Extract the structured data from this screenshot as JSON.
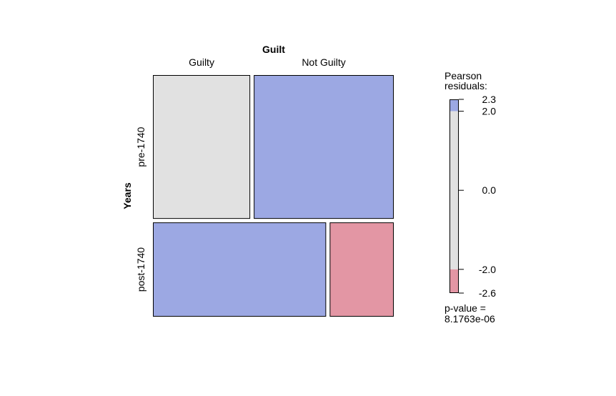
{
  "chart_data": {
    "type": "mosaic",
    "column_variable": "Guilt",
    "row_variable": "Years",
    "columns": [
      "Guilty",
      "Not Guilty"
    ],
    "rows": [
      "pre-1740",
      "post-1740"
    ],
    "row_proportions": [
      0.604,
      0.396
    ],
    "cells": [
      {
        "row": "pre-1740",
        "column": "Guilty",
        "column_proportion": 0.41,
        "residual_band": "neutral"
      },
      {
        "row": "pre-1740",
        "column": "Not Guilty",
        "column_proportion": 0.59,
        "residual_band": "positive"
      },
      {
        "row": "post-1740",
        "column": "Guilty",
        "column_proportion": 0.73,
        "residual_band": "positive"
      },
      {
        "row": "post-1740",
        "column": "Not Guilty",
        "column_proportion": 0.27,
        "residual_band": "negative"
      }
    ],
    "legend": {
      "title": "Pearson\nresiduals:",
      "min": -2.6,
      "max": 2.3,
      "ticks": [
        {
          "value": 2.3,
          "label": "2.3"
        },
        {
          "value": 2.0,
          "label": "2.0"
        },
        {
          "value": 0.0,
          "label": "0.0"
        },
        {
          "value": -2.0,
          "label": "-2.0"
        },
        {
          "value": -2.6,
          "label": "-2.6"
        }
      ],
      "bands": [
        {
          "from": 2.0,
          "to": 2.3,
          "band": "positive"
        },
        {
          "from": -2.0,
          "to": 2.0,
          "band": "neutral"
        },
        {
          "from": -2.6,
          "to": -2.0,
          "band": "negative"
        }
      ]
    },
    "p_value_label": "p-value =",
    "p_value": "8.1763e-06"
  },
  "colors": {
    "positive": "#9ca8e3",
    "neutral": "#e1e1e1",
    "negative": "#e396a4",
    "border": "#000000"
  }
}
